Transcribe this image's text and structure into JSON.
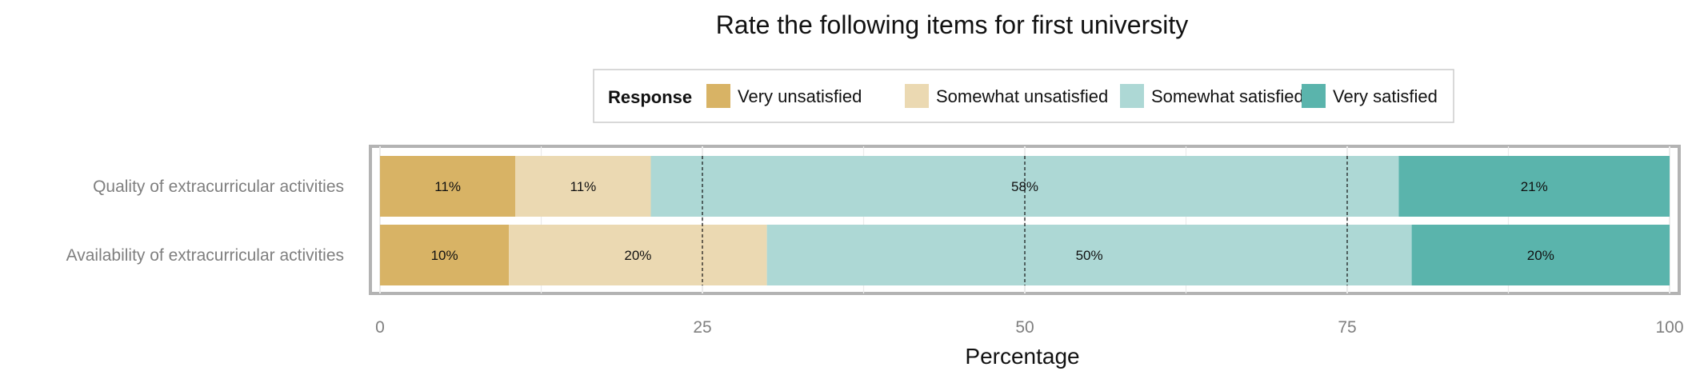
{
  "chart_data": {
    "type": "bar",
    "orientation": "horizontal",
    "stacked": true,
    "title": "Rate the following items for first university",
    "xlabel": "Percentage",
    "ylabel": "",
    "xlim": [
      0,
      100
    ],
    "xticks": [
      0,
      25,
      50,
      75,
      100
    ],
    "categories": [
      "Quality of extracurricular activities",
      "Availability of extracurricular activities"
    ],
    "legend": {
      "title": "Response",
      "placement": "top"
    },
    "series": [
      {
        "name": "Very unsatisfied",
        "color": "#d8b365",
        "values": [
          10.5,
          10
        ],
        "labels": [
          "11%",
          "10%"
        ]
      },
      {
        "name": "Somewhat unsatisfied",
        "color": "#ebd9b2",
        "values": [
          10.5,
          20
        ],
        "labels": [
          "11%",
          "20%"
        ]
      },
      {
        "name": "Somewhat satisfied",
        "color": "#add8d5",
        "values": [
          58,
          50
        ],
        "labels": [
          "58%",
          "50%"
        ]
      },
      {
        "name": "Very satisfied",
        "color": "#5ab4ac",
        "values": [
          21,
          20
        ],
        "labels": [
          "21%",
          "20%"
        ]
      }
    ],
    "grid": true,
    "reference_lines": [
      25,
      50,
      75
    ]
  }
}
